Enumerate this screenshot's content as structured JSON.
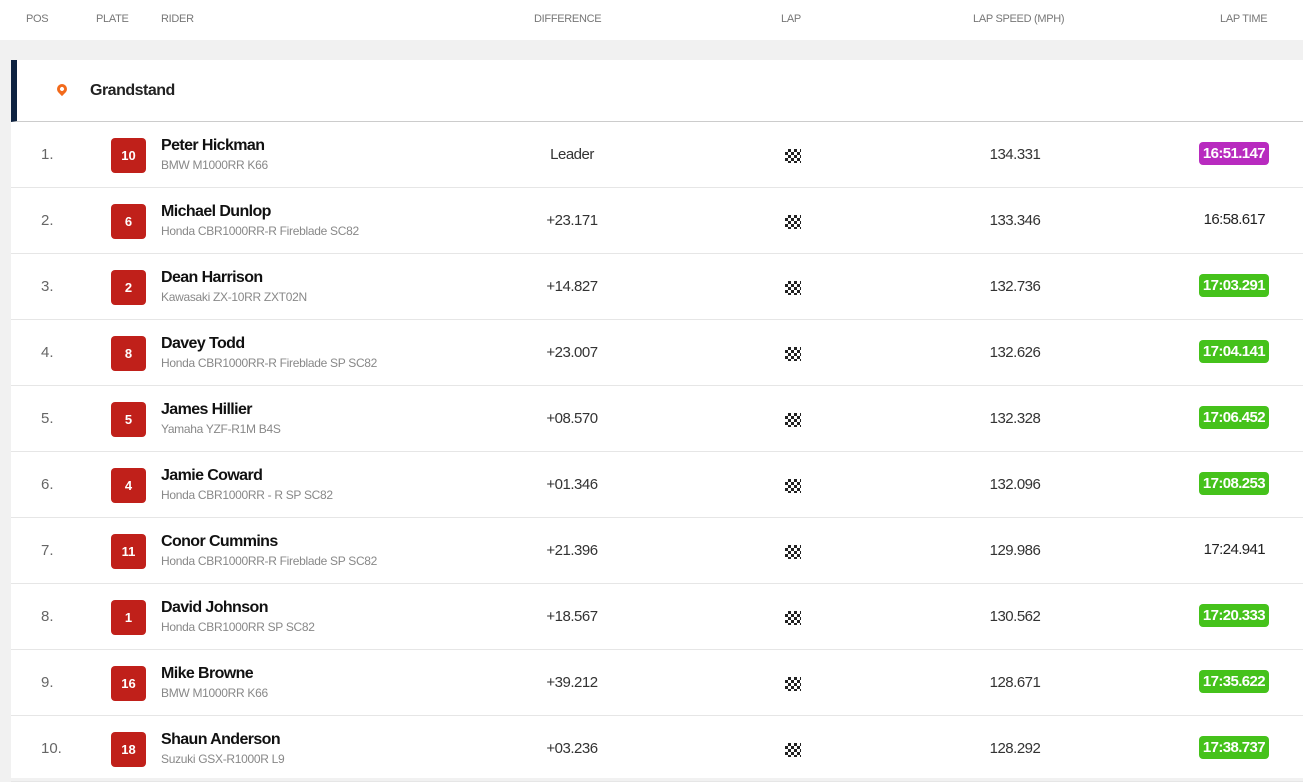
{
  "columns": {
    "pos": "POS",
    "plate": "PLATE",
    "rider": "RIDER",
    "difference": "DIFFERENCE",
    "lap": "LAP",
    "lap_speed": "LAP SPEED (MPH)",
    "lap_time": "LAP TIME"
  },
  "group": {
    "icon": "map-pin-icon",
    "name": "Grandstand"
  },
  "colors": {
    "plate": "#c0201a",
    "best_overall": "#b82bbf",
    "personal_best": "#45c21b",
    "group_accent": "#0d2240"
  },
  "rows": [
    {
      "pos": "1.",
      "plate": "10",
      "name": "Peter Hickman",
      "bike": "BMW M1000RR K66",
      "difference": "Leader",
      "speed": "134.331",
      "time": "16:51.147",
      "highlight": "purple"
    },
    {
      "pos": "2.",
      "plate": "6",
      "name": "Michael Dunlop",
      "bike": "Honda CBR1000RR-R Fireblade SC82",
      "difference": "+23.171",
      "speed": "133.346",
      "time": "16:58.617",
      "highlight": ""
    },
    {
      "pos": "3.",
      "plate": "2",
      "name": "Dean Harrison",
      "bike": "Kawasaki ZX-10RR ZXT02N",
      "difference": "+14.827",
      "speed": "132.736",
      "time": "17:03.291",
      "highlight": "green"
    },
    {
      "pos": "4.",
      "plate": "8",
      "name": "Davey Todd",
      "bike": "Honda CBR1000RR-R Fireblade SP SC82",
      "difference": "+23.007",
      "speed": "132.626",
      "time": "17:04.141",
      "highlight": "green"
    },
    {
      "pos": "5.",
      "plate": "5",
      "name": "James Hillier",
      "bike": "Yamaha YZF-R1M B4S",
      "difference": "+08.570",
      "speed": "132.328",
      "time": "17:06.452",
      "highlight": "green"
    },
    {
      "pos": "6.",
      "plate": "4",
      "name": "Jamie Coward",
      "bike": "Honda CBR1000RR - R SP SC82",
      "difference": "+01.346",
      "speed": "132.096",
      "time": "17:08.253",
      "highlight": "green"
    },
    {
      "pos": "7.",
      "plate": "11",
      "name": "Conor Cummins",
      "bike": "Honda CBR1000RR-R Fireblade SP SC82",
      "difference": "+21.396",
      "speed": "129.986",
      "time": "17:24.941",
      "highlight": ""
    },
    {
      "pos": "8.",
      "plate": "1",
      "name": "David Johnson",
      "bike": "Honda CBR1000RR SP SC82",
      "difference": "+18.567",
      "speed": "130.562",
      "time": "17:20.333",
      "highlight": "green"
    },
    {
      "pos": "9.",
      "plate": "16",
      "name": "Mike Browne",
      "bike": "BMW M1000RR K66",
      "difference": "+39.212",
      "speed": "128.671",
      "time": "17:35.622",
      "highlight": "green"
    },
    {
      "pos": "10.",
      "plate": "18",
      "name": "Shaun Anderson",
      "bike": "Suzuki GSX-R1000R L9",
      "difference": "+03.236",
      "speed": "128.292",
      "time": "17:38.737",
      "highlight": "green"
    }
  ]
}
